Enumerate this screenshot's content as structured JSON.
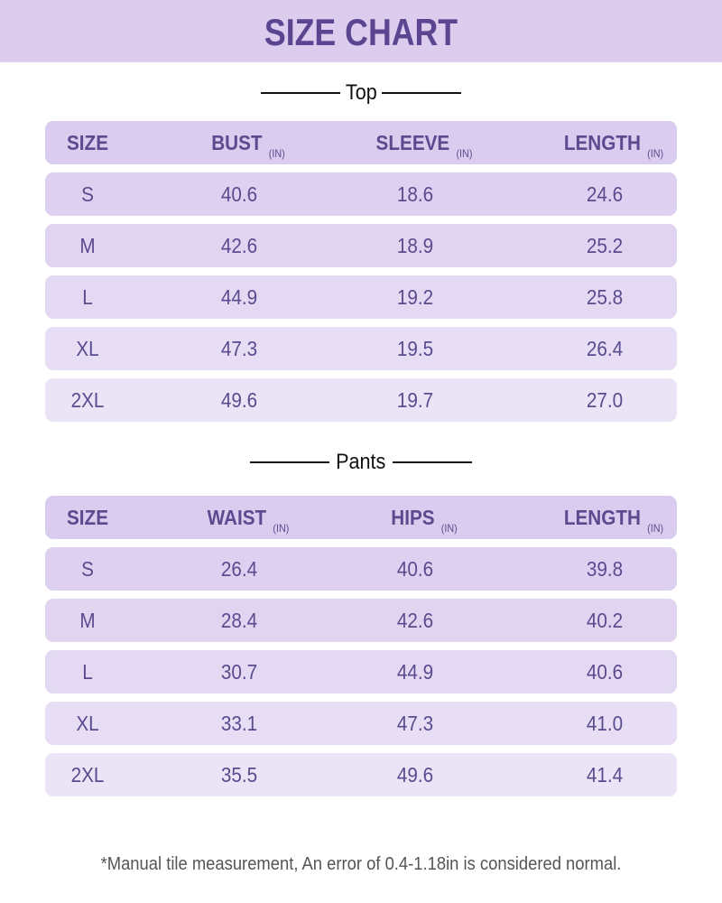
{
  "title": "SIZE CHART",
  "colors": {
    "banner": "#dccdef",
    "header_row": "#d9ccee",
    "text": "#5b4a8e",
    "row_shades": [
      "#ddd0f0",
      "#e0d4f1",
      "#e3d9f3",
      "#e7def5",
      "#ebe4f6"
    ]
  },
  "top": {
    "title": "Top",
    "headers": [
      {
        "label": "SIZE",
        "unit": ""
      },
      {
        "label": "BUST",
        "unit": "(IN)"
      },
      {
        "label": "SLEEVE",
        "unit": "(IN)"
      },
      {
        "label": "LENGTH",
        "unit": "(IN)"
      }
    ],
    "rows": [
      [
        "S",
        "40.6",
        "18.6",
        "24.6"
      ],
      [
        "M",
        "42.6",
        "18.9",
        "25.2"
      ],
      [
        "L",
        "44.9",
        "19.2",
        "25.8"
      ],
      [
        "XL",
        "47.3",
        "19.5",
        "26.4"
      ],
      [
        "2XL",
        "49.6",
        "19.7",
        "27.0"
      ]
    ]
  },
  "pants": {
    "title": "Pants",
    "headers": [
      {
        "label": "SIZE",
        "unit": ""
      },
      {
        "label": "WAIST",
        "unit": "(IN)"
      },
      {
        "label": "HIPS",
        "unit": "(IN)"
      },
      {
        "label": "LENGTH",
        "unit": "(IN)"
      }
    ],
    "rows": [
      [
        "S",
        "26.4",
        "40.6",
        "39.8"
      ],
      [
        "M",
        "28.4",
        "42.6",
        "40.2"
      ],
      [
        "L",
        "30.7",
        "44.9",
        "40.6"
      ],
      [
        "XL",
        "33.1",
        "47.3",
        "41.0"
      ],
      [
        "2XL",
        "35.5",
        "49.6",
        "41.4"
      ]
    ]
  },
  "footnote": "*Manual tile measurement, An error of 0.4-1.18in is considered normal."
}
